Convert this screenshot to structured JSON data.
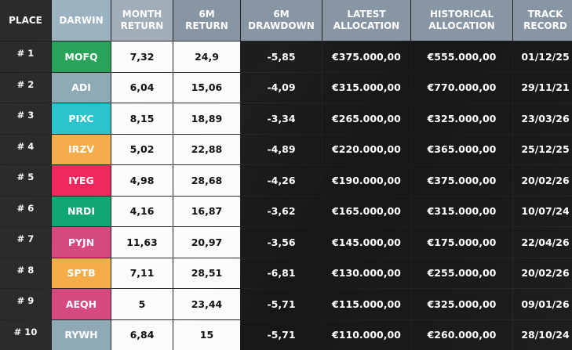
{
  "table": {
    "columns": [
      "PLACE",
      "DARWIN",
      "MONTH\nRETURN",
      "6M\nRETURN",
      "6M\nDRAWDOWN",
      "LATEST\nALLOCATION",
      "HISTORICAL\nALLOCATION",
      "TRACK\nRECORD"
    ],
    "rows": [
      [
        "# 1",
        "MOFQ",
        "7,32",
        "24,9",
        "-5,85",
        "€375.000,00",
        "€555.000,00",
        "01/12/25"
      ],
      [
        "# 2",
        "ADI",
        "6,04",
        "15,06",
        "-4,09",
        "€315.000,00",
        "€770.000,00",
        "29/11/21"
      ],
      [
        "# 3",
        "PIXC",
        "8,15",
        "18,89",
        "-3,34",
        "€265.000,00",
        "€325.000,00",
        "23/03/26"
      ],
      [
        "# 4",
        "IRZV",
        "5,02",
        "22,88",
        "-4,89",
        "€220.000,00",
        "€365.000,00",
        "25/12/25"
      ],
      [
        "# 5",
        "IYEG",
        "4,98",
        "28,68",
        "-4,26",
        "€190.000,00",
        "€375.000,00",
        "20/02/26"
      ],
      [
        "# 6",
        "NRDI",
        "4,16",
        "16,87",
        "-3,62",
        "€165.000,00",
        "€315.000,00",
        "10/07/24"
      ],
      [
        "# 7",
        "PYJN",
        "11,63",
        "20,97",
        "-3,56",
        "€145.000,00",
        "€175.000,00",
        "22/04/26"
      ],
      [
        "# 8",
        "SPTB",
        "7,11",
        "28,51",
        "-6,81",
        "€130.000,00",
        "€255.000,00",
        "20/02/26"
      ],
      [
        "# 9",
        "AEQH",
        "5",
        "23,44",
        "-5,71",
        "€115.000,00",
        "€325.000,00",
        "09/01/26"
      ],
      [
        "# 10",
        "RYWH",
        "6,84",
        "15",
        "-5,71",
        "€110.000,00",
        "€260.000,00",
        "28/10/24"
      ]
    ]
  }
}
